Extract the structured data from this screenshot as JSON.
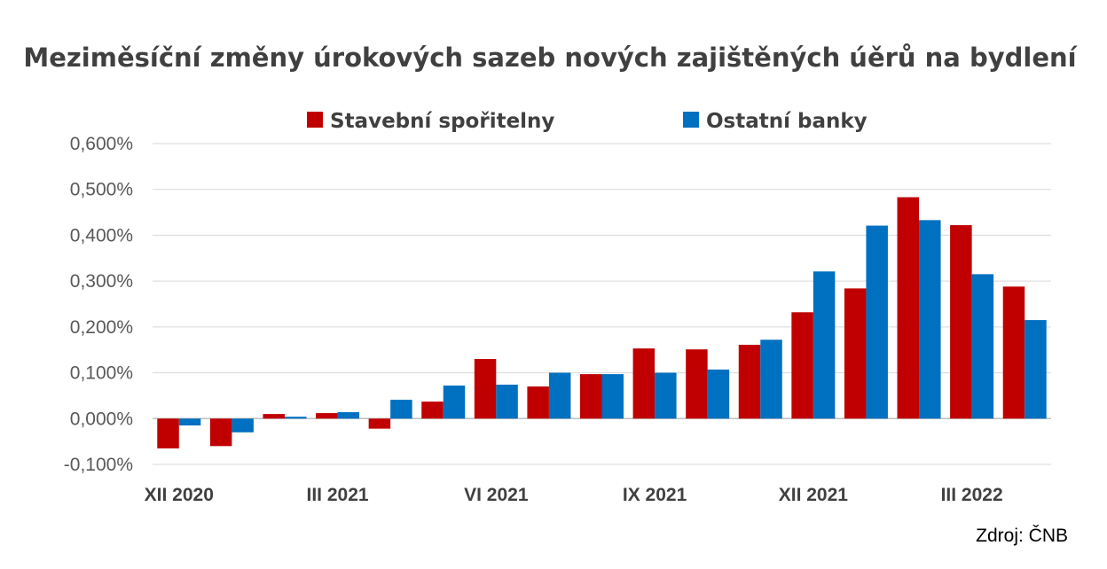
{
  "chart_data": {
    "type": "bar",
    "title": "Meziměsíční změny úrokových sazeb nových zajištěných úěrů na bydlení",
    "source": "Zdroj: ČNB",
    "legend_position": "top-center",
    "grid": true,
    "ylim": [
      -0.1,
      0.6
    ],
    "yticks": [
      -0.1,
      0.0,
      0.1,
      0.2,
      0.3,
      0.4,
      0.5,
      0.6
    ],
    "ytick_labels": [
      "-0,100%",
      "0,000%",
      "0,100%",
      "0,200%",
      "0,300%",
      "0,400%",
      "0,500%",
      "0,600%"
    ],
    "categories": [
      "XII 2020",
      "I 2021",
      "II 2021",
      "III 2021",
      "IV 2021",
      "V 2021",
      "VI 2021",
      "VII 2021",
      "VIII 2021",
      "IX 2021",
      "X 2021",
      "XI 2021",
      "XII 2021",
      "I 2022",
      "II 2022",
      "III 2022",
      "IV 2022"
    ],
    "xtick_labels": [
      {
        "index": 0,
        "label": "XII 2020"
      },
      {
        "index": 3,
        "label": "III 2021"
      },
      {
        "index": 6,
        "label": "VI 2021"
      },
      {
        "index": 9,
        "label": "IX 2021"
      },
      {
        "index": 12,
        "label": "XII 2021"
      },
      {
        "index": 15,
        "label": "III 2022"
      }
    ],
    "series": [
      {
        "name": "Stavební spořitelny",
        "color": "#c00000",
        "values": [
          -0.065,
          -0.06,
          0.01,
          0.012,
          -0.022,
          0.037,
          0.13,
          0.07,
          0.097,
          0.153,
          0.151,
          0.161,
          0.232,
          0.284,
          0.483,
          0.422,
          0.288
        ]
      },
      {
        "name": "Ostatní banky",
        "color": "#0070c0",
        "values": [
          -0.015,
          -0.03,
          0.004,
          0.014,
          0.041,
          0.072,
          0.074,
          0.1,
          0.097,
          0.1,
          0.107,
          0.172,
          0.321,
          0.421,
          0.433,
          0.315,
          0.215
        ]
      }
    ]
  }
}
